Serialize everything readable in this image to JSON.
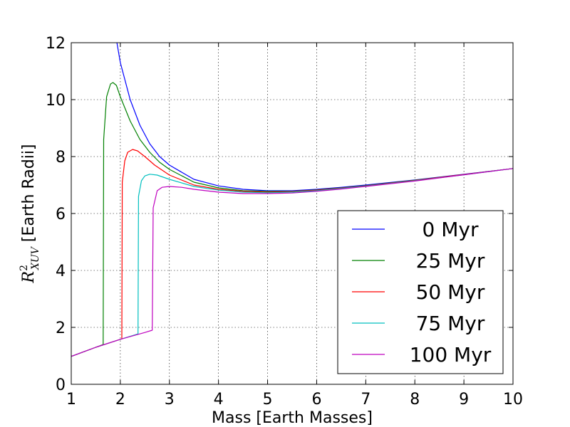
{
  "chart_data": {
    "type": "line",
    "title": "",
    "xlabel": "Mass [Earth Masses]",
    "ylabel_symbol": "R",
    "ylabel_superscript": "2",
    "ylabel_subscript": "XUV",
    "ylabel_units": " [Earth Radii]",
    "xlim": [
      1,
      10
    ],
    "ylim": [
      0,
      12
    ],
    "xticks": [
      1,
      2,
      3,
      4,
      5,
      6,
      7,
      8,
      9,
      10
    ],
    "yticks": [
      0,
      2,
      4,
      6,
      8,
      10,
      12
    ],
    "grid": true,
    "legend_position": "lower-right",
    "series": [
      {
        "name": "0 Myr",
        "color": "#0000ff",
        "points": [
          [
            1.93,
            12.0
          ],
          [
            2.0,
            11.3
          ],
          [
            2.2,
            10.0
          ],
          [
            2.4,
            9.1
          ],
          [
            2.6,
            8.45
          ],
          [
            2.8,
            8.0
          ],
          [
            3.0,
            7.7
          ],
          [
            3.5,
            7.2
          ],
          [
            4.0,
            6.97
          ],
          [
            4.5,
            6.85
          ],
          [
            5.0,
            6.8
          ],
          [
            5.5,
            6.8
          ],
          [
            6.0,
            6.85
          ],
          [
            6.5,
            6.92
          ],
          [
            7.0,
            7.0
          ],
          [
            8.0,
            7.18
          ],
          [
            9.0,
            7.38
          ],
          [
            10.0,
            7.58
          ]
        ]
      },
      {
        "name": "25 Myr",
        "color": "#008000",
        "points": [
          [
            1.0,
            0.98
          ],
          [
            1.5,
            1.3
          ],
          [
            1.65,
            1.4
          ],
          [
            1.66,
            8.6
          ],
          [
            1.72,
            10.1
          ],
          [
            1.8,
            10.55
          ],
          [
            1.85,
            10.6
          ],
          [
            1.92,
            10.5
          ],
          [
            2.0,
            10.1
          ],
          [
            2.2,
            9.25
          ],
          [
            2.4,
            8.6
          ],
          [
            2.6,
            8.15
          ],
          [
            2.8,
            7.8
          ],
          [
            3.0,
            7.55
          ],
          [
            3.5,
            7.1
          ],
          [
            4.0,
            6.9
          ],
          [
            4.5,
            6.8
          ],
          [
            5.0,
            6.78
          ],
          [
            5.5,
            6.78
          ],
          [
            6.0,
            6.83
          ],
          [
            6.5,
            6.9
          ],
          [
            7.0,
            6.98
          ],
          [
            8.0,
            7.17
          ],
          [
            9.0,
            7.37
          ],
          [
            10.0,
            7.58
          ]
        ]
      },
      {
        "name": "50 Myr",
        "color": "#ff0000",
        "points": [
          [
            1.0,
            0.98
          ],
          [
            1.5,
            1.3
          ],
          [
            2.0,
            1.58
          ],
          [
            2.03,
            1.6
          ],
          [
            2.04,
            7.1
          ],
          [
            2.09,
            7.85
          ],
          [
            2.15,
            8.15
          ],
          [
            2.25,
            8.25
          ],
          [
            2.35,
            8.2
          ],
          [
            2.5,
            8.0
          ],
          [
            2.7,
            7.7
          ],
          [
            3.0,
            7.35
          ],
          [
            3.5,
            7.0
          ],
          [
            4.0,
            6.85
          ],
          [
            4.5,
            6.78
          ],
          [
            5.0,
            6.75
          ],
          [
            5.5,
            6.77
          ],
          [
            6.0,
            6.82
          ],
          [
            6.5,
            6.89
          ],
          [
            7.0,
            6.97
          ],
          [
            8.0,
            7.16
          ],
          [
            9.0,
            7.37
          ],
          [
            10.0,
            7.58
          ]
        ]
      },
      {
        "name": "75 Myr",
        "color": "#00bfbf",
        "points": [
          [
            1.0,
            0.98
          ],
          [
            1.5,
            1.3
          ],
          [
            2.0,
            1.58
          ],
          [
            2.36,
            1.77
          ],
          [
            2.37,
            6.6
          ],
          [
            2.43,
            7.15
          ],
          [
            2.5,
            7.32
          ],
          [
            2.6,
            7.38
          ],
          [
            2.75,
            7.35
          ],
          [
            3.0,
            7.2
          ],
          [
            3.5,
            6.95
          ],
          [
            4.0,
            6.82
          ],
          [
            4.5,
            6.75
          ],
          [
            5.0,
            6.73
          ],
          [
            5.5,
            6.75
          ],
          [
            6.0,
            6.8
          ],
          [
            6.5,
            6.88
          ],
          [
            7.0,
            6.96
          ],
          [
            8.0,
            7.15
          ],
          [
            9.0,
            7.36
          ],
          [
            10.0,
            7.58
          ]
        ]
      },
      {
        "name": "100 Myr",
        "color": "#bf00bf",
        "points": [
          [
            1.0,
            0.98
          ],
          [
            1.5,
            1.3
          ],
          [
            2.0,
            1.58
          ],
          [
            2.5,
            1.82
          ],
          [
            2.65,
            1.9
          ],
          [
            2.67,
            6.2
          ],
          [
            2.75,
            6.8
          ],
          [
            2.85,
            6.92
          ],
          [
            3.0,
            6.95
          ],
          [
            3.25,
            6.92
          ],
          [
            3.5,
            6.85
          ],
          [
            4.0,
            6.75
          ],
          [
            4.5,
            6.7
          ],
          [
            5.0,
            6.7
          ],
          [
            5.5,
            6.72
          ],
          [
            6.0,
            6.78
          ],
          [
            6.5,
            6.86
          ],
          [
            7.0,
            6.95
          ],
          [
            8.0,
            7.14
          ],
          [
            9.0,
            7.36
          ],
          [
            10.0,
            7.58
          ]
        ]
      }
    ]
  }
}
